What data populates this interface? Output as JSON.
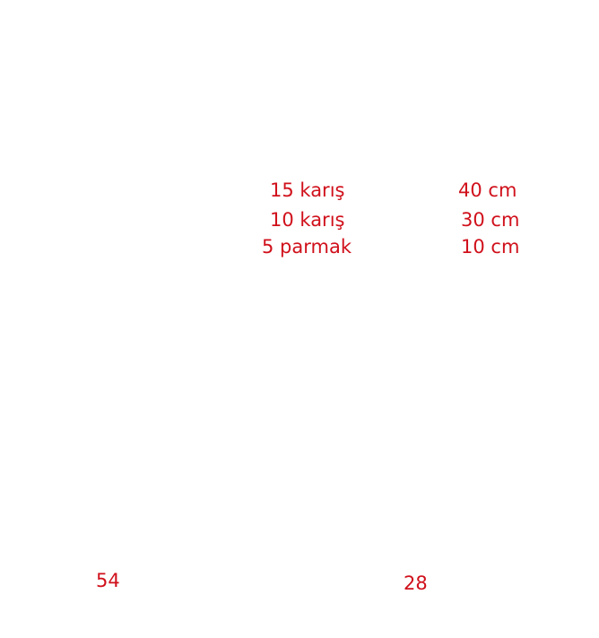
{
  "rows": [
    [
      "15 karış",
      "40 cm"
    ],
    [
      "10 karış",
      "30 cm"
    ],
    [
      "5 parmak",
      "10 cm"
    ]
  ],
  "page_numbers": [
    "54",
    "28"
  ]
}
